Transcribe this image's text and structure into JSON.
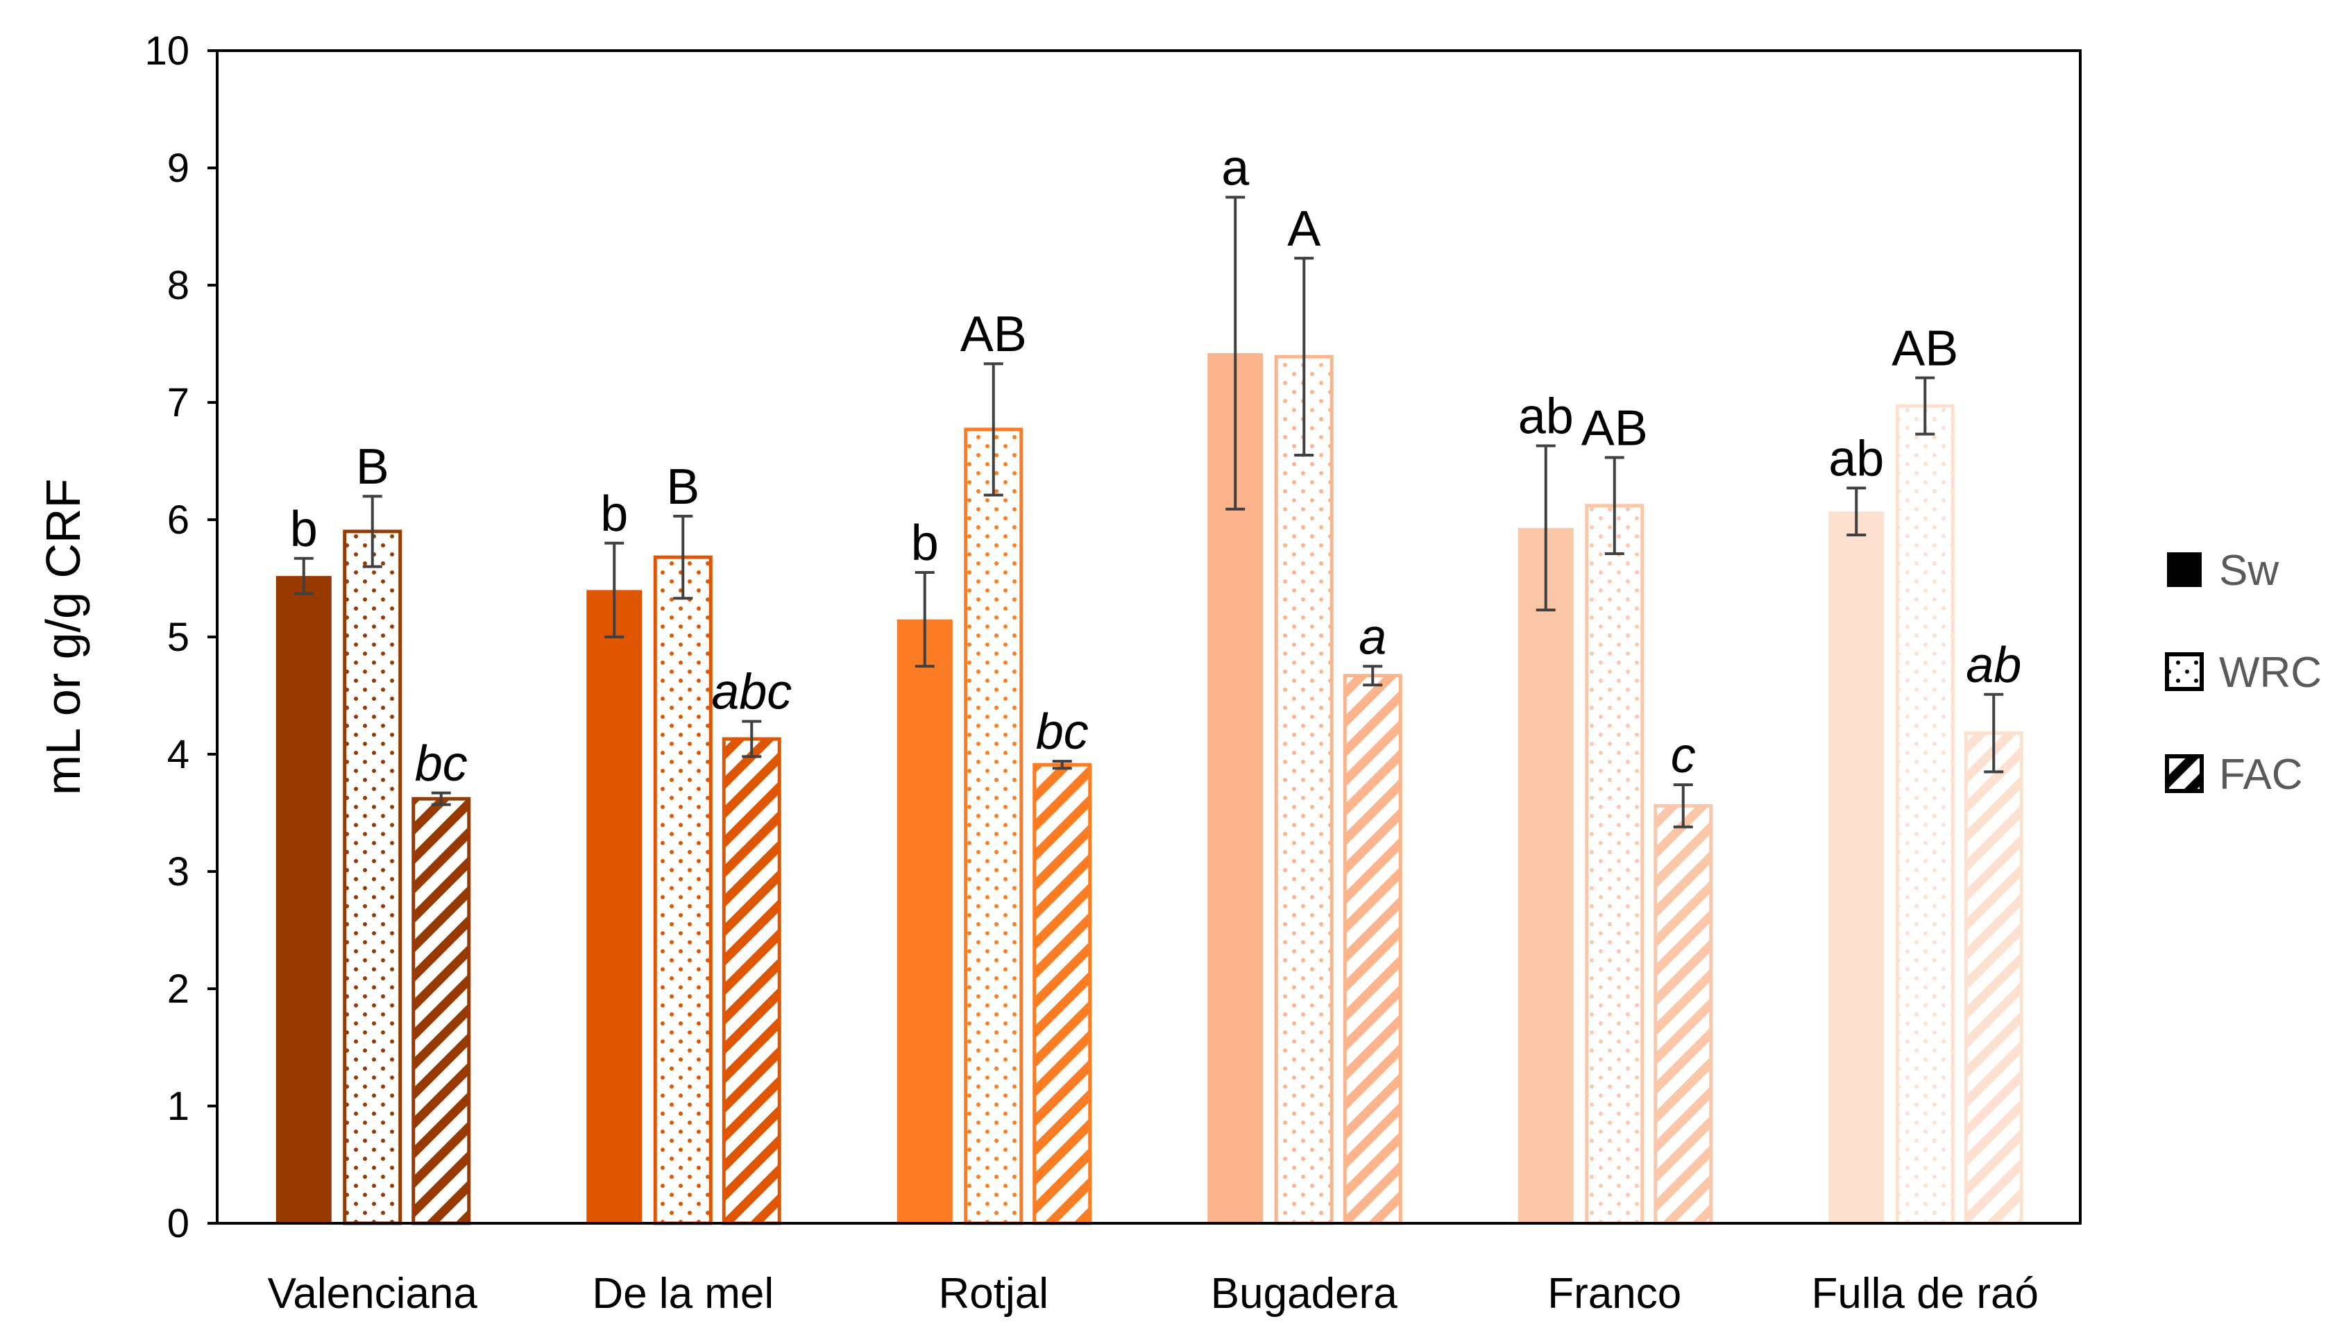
{
  "chart_data": {
    "type": "bar",
    "title": "",
    "xlabel": "",
    "ylabel": "mL or g/g CRF",
    "ylim": [
      0,
      10
    ],
    "yticks": [
      0,
      1,
      2,
      3,
      4,
      5,
      6,
      7,
      8,
      9,
      10
    ],
    "grid": false,
    "legend_position": "right",
    "categories": [
      "Valenciana",
      "De la mel",
      "Rotjal",
      "Bugadera",
      "Franco",
      "Fulla de raó"
    ],
    "category_colors": [
      "#983a00",
      "#e05500",
      "#fb7c22",
      "#fbb48c",
      "#fcc7a8",
      "#fde0cf"
    ],
    "series": [
      {
        "name": "Sw",
        "pattern": "solid",
        "values": [
          5.52,
          5.4,
          5.15,
          7.42,
          5.93,
          6.07
        ],
        "errors": [
          0.15,
          0.4,
          0.4,
          1.33,
          0.7,
          0.2
        ],
        "labels": [
          "b",
          "b",
          "b",
          "a",
          "ab",
          "ab"
        ],
        "label_style": "normal"
      },
      {
        "name": "WRC",
        "pattern": "dots",
        "values": [
          5.9,
          5.68,
          6.77,
          7.39,
          6.12,
          6.97
        ],
        "errors": [
          0.3,
          0.35,
          0.56,
          0.84,
          0.41,
          0.24
        ],
        "labels": [
          "B",
          "B",
          "AB",
          "A",
          "AB",
          "AB"
        ],
        "label_style": "normal"
      },
      {
        "name": "FAC",
        "pattern": "diagonal",
        "values": [
          3.62,
          4.13,
          3.91,
          4.67,
          3.56,
          4.18
        ],
        "errors": [
          0.05,
          0.15,
          0.03,
          0.08,
          0.18,
          0.33
        ],
        "labels": [
          "bc",
          "abc",
          "bc",
          "a",
          "c",
          "ab"
        ],
        "label_style": "italic"
      }
    ]
  }
}
